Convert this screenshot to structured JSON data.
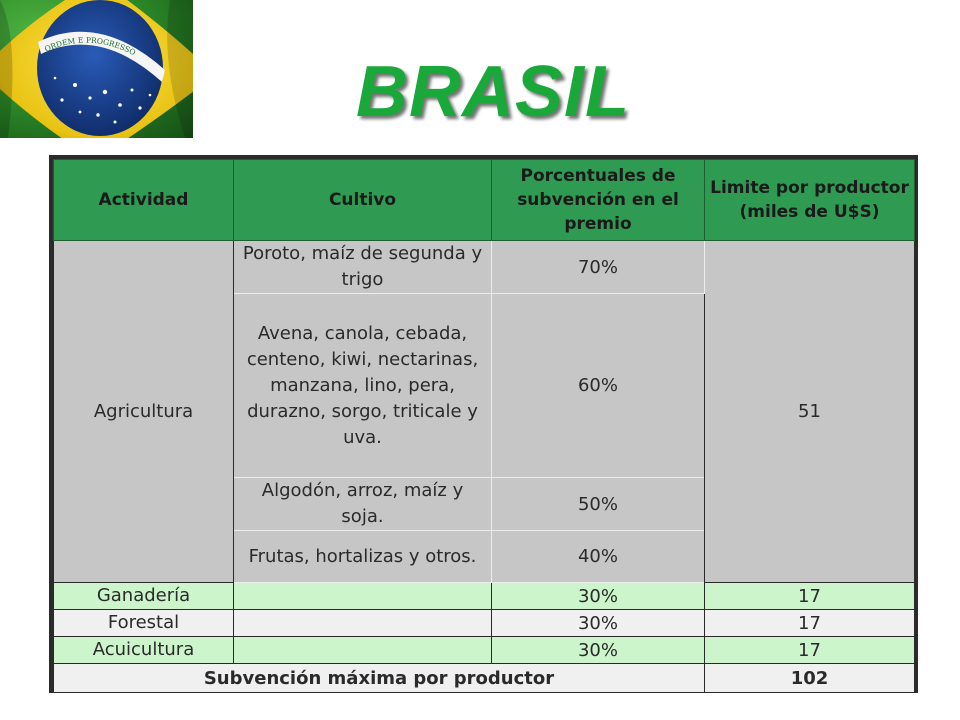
{
  "flag": {
    "motto": "ORDEM E PROGRESSO",
    "colors": {
      "green": "#2e8c2a",
      "yellow": "#f3d21b",
      "blue": "#1b3f8f",
      "white": "#ffffff"
    }
  },
  "title": "BRASIL",
  "table": {
    "headers": [
      "Actividad",
      "Cultivo",
      "Porcentuales de subvención en el premio",
      "Limite por productor (miles de U$S)"
    ],
    "agriculture": {
      "activity": "Agricultura",
      "limit": "51",
      "crops": [
        {
          "crop": "Poroto, maíz de segunda y trigo",
          "percent": "70%"
        },
        {
          "crop": "Avena, canola, cebada, centeno, kiwi, nectarinas, manzana, lino, pera, durazno, sorgo, triticale y uva.",
          "percent": "60%"
        },
        {
          "crop": "Algodón, arroz, maíz y soja.",
          "percent": "50%"
        },
        {
          "crop": "Frutas, hortalizas y otros.",
          "percent": "40%"
        }
      ]
    },
    "other_rows": [
      {
        "activity": "Ganadería",
        "crop": "",
        "percent": "30%",
        "limit": "17"
      },
      {
        "activity": "Forestal",
        "crop": "",
        "percent": "30%",
        "limit": "17"
      },
      {
        "activity": "Acuicultura",
        "crop": "",
        "percent": "30%",
        "limit": "17"
      }
    ],
    "total": {
      "label": "Subvención máxima por productor",
      "value": "102"
    },
    "colors": {
      "header": "#2f9a52",
      "agri_bg": "#c6c6c6",
      "mint": "#ccf5cc",
      "pale": "#f0f0f0"
    }
  }
}
